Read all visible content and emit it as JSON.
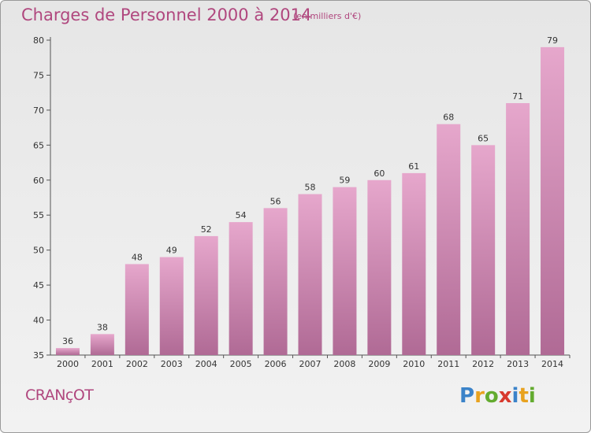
{
  "header": {
    "title": "Charges de Personnel 2000 à 2014",
    "unit": "(en milliers d'€)"
  },
  "footer": {
    "commune": "CRANçOT",
    "logo_letters": [
      {
        "char": "P",
        "color": "#3b83c9"
      },
      {
        "char": "r",
        "color": "#e8a21f"
      },
      {
        "char": "o",
        "color": "#63ab2f"
      },
      {
        "char": "x",
        "color": "#d83a2e"
      },
      {
        "char": "i",
        "color": "#3b83c9"
      },
      {
        "char": "t",
        "color": "#e8a21f"
      },
      {
        "char": "i",
        "color": "#63ab2f"
      }
    ]
  },
  "colors": {
    "bar_top": "#e6a7cc",
    "bar_bottom": "#b06a95",
    "title": "#b0477e"
  },
  "chart_data": {
    "type": "bar",
    "title": "Charges de Personnel 2000 à 2014",
    "categories": [
      "2000",
      "2001",
      "2002",
      "2003",
      "2004",
      "2005",
      "2006",
      "2007",
      "2008",
      "2009",
      "2010",
      "2011",
      "2012",
      "2013",
      "2014"
    ],
    "values": [
      36,
      38,
      48,
      49,
      52,
      54,
      56,
      58,
      59,
      60,
      61,
      68,
      65,
      71,
      79
    ],
    "yticks": [
      35,
      40,
      45,
      50,
      55,
      60,
      65,
      70,
      75,
      80
    ],
    "ylim": [
      35,
      80
    ],
    "grid": false,
    "legend": "none"
  }
}
